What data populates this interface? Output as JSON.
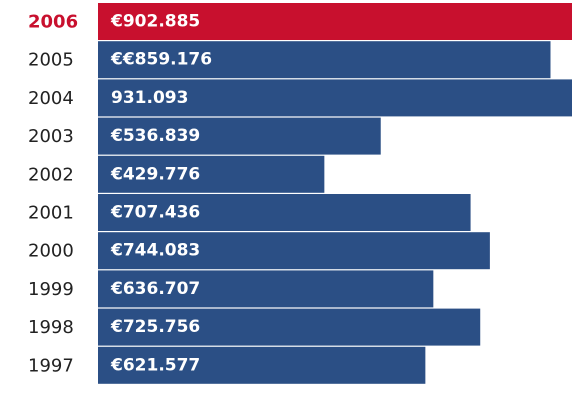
{
  "chart_data": {
    "type": "hbar",
    "categories": [
      "2006",
      "2005",
      "2004",
      "2003",
      "2002",
      "2001",
      "2000",
      "1999",
      "1998",
      "1997"
    ],
    "values": [
      902885,
      859176,
      931093,
      536839,
      429776,
      707436,
      744083,
      636707,
      725756,
      621577
    ],
    "value_labels": [
      "€902.885",
      "€€859.176",
      "931.093",
      "€536.839",
      "€429.776",
      "€707.436",
      "€744.083",
      "€636.707",
      "€725.756",
      "€621.577"
    ],
    "color": "#2b4f85",
    "highlight": {
      "index": 0,
      "color": "#c8102e"
    },
    "xlim": [
      0,
      900000
    ]
  }
}
